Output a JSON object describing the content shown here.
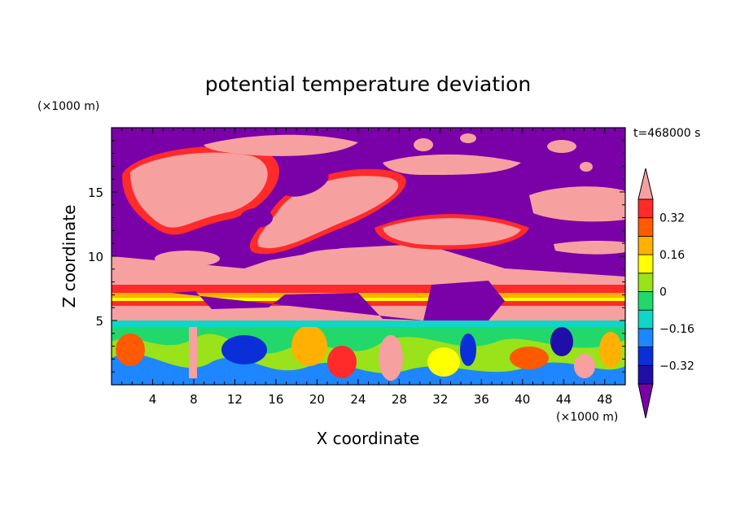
{
  "chart_data": {
    "type": "heatmap",
    "title": "potential temperature deviation",
    "xlabel": "X coordinate",
    "ylabel": "Z coordinate",
    "x_unit": "(×1000 m)",
    "y_unit": "(×1000 m)",
    "time_label": "t=468000 s",
    "xlim": [
      0,
      50
    ],
    "ylim": [
      0,
      20
    ],
    "x_ticks": [
      4,
      8,
      12,
      16,
      20,
      24,
      28,
      32,
      36,
      40,
      44,
      48
    ],
    "y_ticks": [
      5,
      10,
      15
    ],
    "colorbar": {
      "levels": [
        -0.4,
        -0.32,
        -0.24,
        -0.16,
        -0.08,
        0,
        0.08,
        0.16,
        0.24,
        0.32,
        0.4
      ],
      "colors": [
        "#7a00a8",
        "#1f0fa8",
        "#0a2fd8",
        "#1e86ff",
        "#10d6c8",
        "#22d86a",
        "#9ae21a",
        "#ffff00",
        "#ffb000",
        "#ff5a00",
        "#ff2a2a",
        "#f7a0a0"
      ],
      "labels": [
        "0.32",
        "0.16",
        "0",
        "−0.16",
        "−0.32"
      ],
      "label_values": [
        0.32,
        0.16,
        0,
        -0.16,
        -0.32
      ],
      "extend": "both"
    }
  }
}
